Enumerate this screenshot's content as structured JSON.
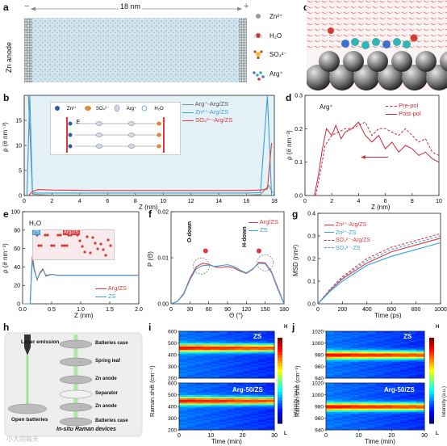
{
  "panel_labels": {
    "a": "a",
    "b": "b",
    "c": "c",
    "d": "d",
    "e": "e",
    "f": "f",
    "g": "g",
    "h": "h",
    "i": "i",
    "j": "j"
  },
  "a": {
    "dim": "18 nm",
    "left_sign": "−",
    "right_sign": "+",
    "anode": "Zn anode",
    "legend": [
      {
        "label": "Zn²⁺"
      },
      {
        "label": "H₂O"
      },
      {
        "label": "SO₄²⁻"
      },
      {
        "label": "Arg⁺"
      }
    ]
  },
  "b": {
    "ylabel": "ρ (# nm⁻³)",
    "xlabel": "Z (nm)",
    "inset": {
      "legend": [
        "Zn²⁺",
        "SO₄²⁻",
        "Arg⁺",
        "H₂O"
      ],
      "field": "E"
    },
    "legend": [
      "Arg⁺-Arg/ZS",
      "Zn²⁺-Arg/ZS",
      "SO₄²⁻-Arg/ZS"
    ]
  },
  "d": {
    "ylabel": "ρ (# nm⁻³)",
    "xlabel": "Z (nm)",
    "tag": "Arg⁺",
    "legend": [
      "Pre-pol",
      "Post-pol"
    ]
  },
  "e": {
    "ylabel": "ρ (# nm⁻³)",
    "xlabel": "Z (nm)",
    "tag": "H₂O",
    "inset_zs": "ZS",
    "inset_arg": "Arg/ZS",
    "legend": [
      "Arg/ZS",
      "ZS"
    ]
  },
  "f": {
    "ylabel": "P (Θ)",
    "xlabel": "Θ (°)",
    "legend": [
      "Arg/ZS",
      "ZS"
    ],
    "odown": "O-down",
    "hdown": "H-down"
  },
  "g": {
    "ylabel": "MSD (nm²)",
    "xlabel": "Time (ps)",
    "legend": [
      "Zn²⁺-Arg/ZS",
      "Zn²⁺-ZS",
      "SO₄²⁻-Arg/ZS",
      "SO₄²⁻-ZS"
    ]
  },
  "h": {
    "laser": "Laser emission",
    "open": "Open batteries",
    "caption": "In-situ Raman devices",
    "parts": [
      "Batteries case",
      "Spring leaf",
      "Zn anode",
      "Separator",
      "Zn anode",
      "Batteries case"
    ]
  },
  "i": {
    "ylabel": "Raman shift (cm⁻¹)",
    "xlabel": "Time (min)",
    "top": "ZS",
    "bottom": "Arg-50/ZS",
    "cbar_h": "H",
    "cbar_l": "L",
    "cbar_label": "Intensity (a.u.)"
  },
  "j": {
    "ylabel": "Raman shift (cm⁻¹)",
    "xlabel": "Time (min)",
    "top": "ZS",
    "bottom": "Arg-50/ZS",
    "cbar_h": "H",
    "cbar_l": "L",
    "cbar_label": "Intensity (a.u.)"
  },
  "watermark": "小大的每天",
  "colors": {
    "grey": "#8a8a8a",
    "blue": "#3aa0d8",
    "red": "#e0383e",
    "crimson": "#c8283a"
  },
  "chart_data": [
    {
      "id": "b",
      "type": "line",
      "xlim": [
        0,
        18
      ],
      "ylim": [
        0,
        20
      ],
      "xticks": [
        "0",
        "2",
        "4",
        "6",
        "8",
        "10",
        "12",
        "14",
        "16",
        "18"
      ],
      "yticks": [
        "0",
        "5",
        "10",
        "15"
      ],
      "series": [
        {
          "name": "Arg⁺-Arg/ZS",
          "x": [
            0.3,
            0.6,
            1,
            2,
            5,
            9,
            13,
            16,
            17,
            17.6,
            17.9
          ],
          "y": [
            20,
            0.3,
            0.2,
            0.1,
            0.1,
            0.1,
            0.1,
            0.1,
            0.2,
            2,
            0.5
          ]
        },
        {
          "name": "Zn²⁺-Arg/ZS",
          "x": [
            0.2,
            0.4,
            0.6,
            1,
            2,
            5,
            9,
            13,
            16,
            17,
            17.5,
            17.8
          ],
          "y": [
            0,
            20,
            0.5,
            0.5,
            0.5,
            0.5,
            0.5,
            0.5,
            0.5,
            0.6,
            20,
            0
          ]
        },
        {
          "name": "SO₄²⁻-Arg/ZS",
          "x": [
            0.3,
            0.6,
            1,
            2,
            5,
            9,
            13,
            16,
            17,
            17.5,
            17.8
          ],
          "y": [
            0,
            0.8,
            1.2,
            1.1,
            1.0,
            1.0,
            1.0,
            1.0,
            1.1,
            1.3,
            10.5
          ]
        }
      ]
    },
    {
      "id": "d",
      "type": "line",
      "xlim": [
        0,
        10
      ],
      "ylim": [
        0,
        0.3
      ],
      "xticks": [
        "0",
        "2",
        "4",
        "6",
        "8",
        "10"
      ],
      "yticks": [
        "0.0",
        "0.1",
        "0.2",
        "0.3"
      ],
      "series": [
        {
          "name": "Pre-pol",
          "x": [
            0.8,
            1.1,
            1.5,
            2,
            2.5,
            3,
            3.5,
            4,
            4.5,
            5,
            5.5,
            6,
            6.5,
            7,
            7.5,
            8,
            8.5,
            9,
            9.5,
            10
          ],
          "y": [
            0,
            0.06,
            0.15,
            0.18,
            0.19,
            0.2,
            0.2,
            0.21,
            0.22,
            0.18,
            0.2,
            0.2,
            0.19,
            0.18,
            0.2,
            0.18,
            0.16,
            0.17,
            0.13,
            0.12
          ]
        },
        {
          "name": "Post-pol",
          "x": [
            0.7,
            1,
            1.3,
            1.6,
            2,
            2.3,
            2.7,
            3,
            3.5,
            4,
            4.5,
            5,
            5.5,
            6,
            6.5,
            7,
            7.5,
            8,
            8.5,
            9,
            9.5,
            10
          ],
          "y": [
            0,
            0.06,
            0.14,
            0.2,
            0.18,
            0.21,
            0.17,
            0.19,
            0.2,
            0.22,
            0.18,
            0.16,
            0.18,
            0.14,
            0.16,
            0.13,
            0.15,
            0.14,
            0.12,
            0.13,
            0.11,
            0.1
          ]
        }
      ]
    },
    {
      "id": "e",
      "type": "line",
      "xlim": [
        0,
        2.0
      ],
      "ylim": [
        0,
        100
      ],
      "xticks": [
        "0.0",
        "0.5",
        "1.0",
        "1.5",
        "2.0"
      ],
      "yticks": [
        "0",
        "20",
        "40",
        "60",
        "80",
        "100"
      ],
      "series": [
        {
          "name": "Arg/ZS",
          "x": [
            0,
            0.13,
            0.15,
            0.17,
            0.2,
            0.25,
            0.3,
            0.35,
            0.4,
            0.5,
            0.6,
            0.8,
            1.0,
            1.5,
            2.0
          ],
          "y": [
            0,
            0,
            30,
            52,
            38,
            26,
            34,
            38,
            30,
            32,
            31,
            31,
            31,
            31,
            31
          ]
        },
        {
          "name": "ZS",
          "x": [
            0,
            0.13,
            0.15,
            0.17,
            0.2,
            0.25,
            0.3,
            0.35,
            0.4,
            0.5,
            0.6,
            0.8,
            1.0,
            1.5,
            2.0
          ],
          "y": [
            0,
            0,
            28,
            47,
            36,
            27,
            33,
            37,
            31,
            32,
            31,
            31,
            31,
            31,
            31
          ]
        }
      ]
    },
    {
      "id": "f",
      "type": "line",
      "xlim": [
        0,
        180
      ],
      "ylim": [
        0,
        0.02
      ],
      "xticks": [
        "0",
        "30",
        "60",
        "90",
        "120",
        "150",
        "180"
      ],
      "yticks": [
        "0.00",
        "0.01",
        "0.02"
      ],
      "series": [
        {
          "name": "Arg/ZS",
          "x": [
            0,
            10,
            20,
            30,
            40,
            50,
            60,
            70,
            80,
            90,
            100,
            110,
            120,
            130,
            140,
            150,
            160,
            170,
            180
          ],
          "y": [
            0,
            0.0005,
            0.0022,
            0.0055,
            0.008,
            0.0088,
            0.0086,
            0.008,
            0.0079,
            0.0081,
            0.0078,
            0.0071,
            0.0066,
            0.0075,
            0.009,
            0.0089,
            0.007,
            0.0035,
            0
          ]
        },
        {
          "name": "ZS",
          "x": [
            0,
            10,
            20,
            30,
            40,
            50,
            60,
            70,
            80,
            90,
            100,
            110,
            120,
            130,
            140,
            150,
            160,
            170,
            180
          ],
          "y": [
            0,
            0.0005,
            0.002,
            0.0052,
            0.0076,
            0.0083,
            0.0084,
            0.0081,
            0.0083,
            0.0085,
            0.0081,
            0.0073,
            0.0067,
            0.0076,
            0.0088,
            0.0087,
            0.0068,
            0.0032,
            0
          ]
        }
      ]
    },
    {
      "id": "g",
      "type": "line",
      "xlim": [
        0,
        1000
      ],
      "ylim": [
        0,
        0.4
      ],
      "xticks": [
        "0",
        "200",
        "400",
        "600",
        "800",
        "1000"
      ],
      "yticks": [
        "0.0",
        "0.1",
        "0.2",
        "0.3",
        "0.4"
      ],
      "series": [
        {
          "name": "Zn²⁺-Arg/ZS",
          "x": [
            0,
            100,
            200,
            400,
            600,
            800,
            1000
          ],
          "y": [
            0,
            0.06,
            0.11,
            0.18,
            0.23,
            0.26,
            0.29
          ]
        },
        {
          "name": "Zn²⁺-ZS",
          "x": [
            0,
            100,
            200,
            400,
            600,
            800,
            1000
          ],
          "y": [
            0,
            0.055,
            0.1,
            0.17,
            0.21,
            0.24,
            0.27
          ]
        },
        {
          "name": "SO₄²⁻-Arg/ZS",
          "x": [
            0,
            100,
            200,
            400,
            600,
            800,
            1000
          ],
          "y": [
            0,
            0.065,
            0.12,
            0.2,
            0.25,
            0.28,
            0.31
          ]
        },
        {
          "name": "SO₄²⁻-ZS",
          "x": [
            0,
            100,
            200,
            400,
            600,
            800,
            1000
          ],
          "y": [
            0,
            0.06,
            0.115,
            0.19,
            0.24,
            0.27,
            0.3
          ]
        }
      ]
    },
    {
      "id": "i",
      "type": "heatmap",
      "xlim": [
        0,
        30
      ],
      "xticks": [
        "0",
        "10",
        "20",
        "30"
      ],
      "panels": [
        {
          "name": "ZS",
          "ylim": [
            200,
            600
          ],
          "yticks": [
            "200",
            "300",
            "400",
            "500",
            "600"
          ],
          "band": 460
        },
        {
          "name": "Arg-50/ZS",
          "ylim": [
            200,
            600
          ],
          "yticks": [
            "200",
            "300",
            "400",
            "500",
            "600"
          ],
          "band": 450
        }
      ]
    },
    {
      "id": "j",
      "type": "heatmap",
      "xlim": [
        0,
        30
      ],
      "xticks": [
        "0",
        "10",
        "20",
        "30"
      ],
      "panels": [
        {
          "name": "ZS",
          "ylim": [
            940,
            1020
          ],
          "yticks": [
            "940",
            "960",
            "980",
            "1000",
            "1020"
          ],
          "band": 980
        },
        {
          "name": "Arg-50/ZS",
          "ylim": [
            940,
            1020
          ],
          "yticks": [
            "940",
            "960",
            "980",
            "1000",
            "1020"
          ],
          "band": 980
        }
      ]
    }
  ]
}
